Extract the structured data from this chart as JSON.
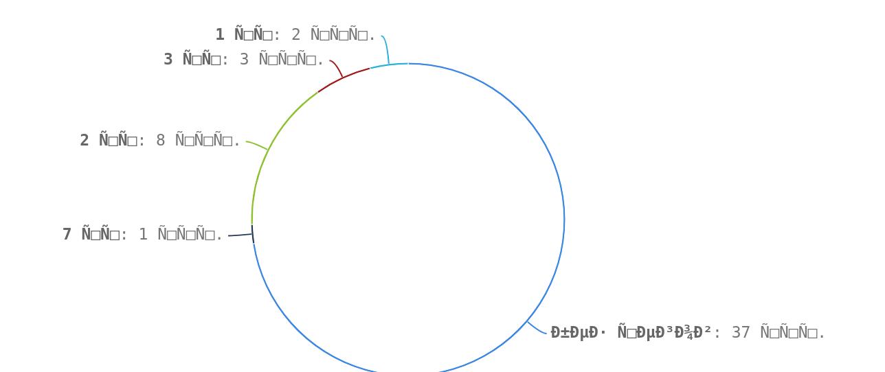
{
  "chart_data": {
    "type": "donut",
    "categories": [
      "Ð±ÐµÐ· Ñ□ÐµÐ³Ð¾Ð²",
      "7 Ñ□Ñ□",
      "2 Ñ□Ñ□",
      "3 Ñ□Ñ□",
      "1 Ñ□Ñ□"
    ],
    "values": [
      37,
      1,
      8,
      3,
      2
    ],
    "value_labels": [
      ": 37 Ñ□Ñ□Ñ□.",
      ": 1 Ñ□Ñ□Ñ□.",
      ": 8 Ñ□Ñ□Ñ□.",
      ": 3 Ñ□Ñ□Ñ□.",
      ": 2 Ñ□Ñ□Ñ□."
    ],
    "colors": [
      "#3b86e0",
      "#243a52",
      "#8fc031",
      "#a01a1a",
      "#2ab0d8"
    ],
    "legend": false
  }
}
